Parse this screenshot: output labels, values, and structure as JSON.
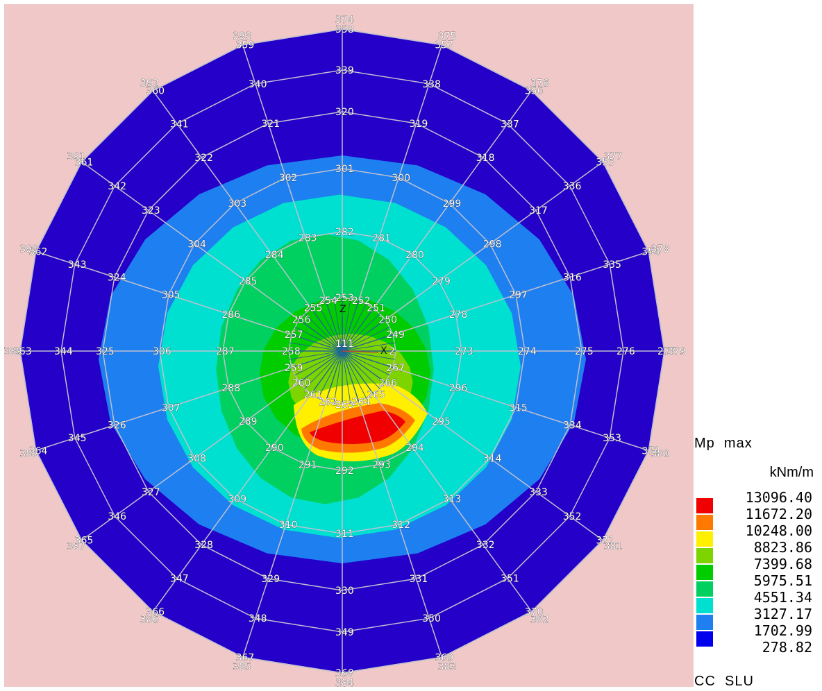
{
  "diagram": {
    "result_type": "Mp",
    "stat": "max",
    "unit": "kNm/m",
    "load_case": "CC",
    "limit_state": "SLU",
    "axis_labels": {
      "z": "Z",
      "x": "X"
    },
    "center_node": "111",
    "colors": {
      "background": "#f0c8c8",
      "mesh_line": "#c0c0d0",
      "outer_band": "#2400c8",
      "levels": [
        "#0000ee",
        "#1e7ff0",
        "#00e0d0",
        "#00d060",
        "#00cc00",
        "#7ed400",
        "#fff000",
        "#ff7800",
        "#f00000"
      ]
    },
    "legend_values": [
      "13096.40",
      "11672.20",
      "10248.00",
      "8823.86",
      "7399.68",
      "5975.51",
      "4551.34",
      "3127.17",
      "1702.99",
      "278.82"
    ],
    "legend_colors": [
      "#f00000",
      "#ff7800",
      "#fff000",
      "#7ed400",
      "#00cc00",
      "#00d060",
      "#00e0d0",
      "#1e7ff0",
      "#0000ee"
    ],
    "ring_nodes": [
      [
        "2",
        "249",
        "250",
        "251",
        "252",
        "253",
        "254",
        "255",
        "256",
        "257",
        "258",
        "259",
        "260",
        "261",
        "262",
        "263",
        "264",
        "265",
        "266",
        "267"
      ],
      [
        "273",
        "278",
        "279",
        "280",
        "281",
        "282",
        "283",
        "284",
        "285",
        "286",
        "287",
        "288",
        "289",
        "290",
        "291",
        "292",
        "293",
        "294",
        "295",
        "296"
      ],
      [
        "274",
        "297",
        "298",
        "299",
        "300",
        "301",
        "302",
        "303",
        "304",
        "305",
        "306",
        "307",
        "308",
        "309",
        "310",
        "311",
        "312",
        "313",
        "314",
        "315"
      ],
      [
        "275",
        "316",
        "317",
        "318",
        "319",
        "320",
        "321",
        "322",
        "323",
        "324",
        "325",
        "326",
        "327",
        "328",
        "329",
        "330",
        "331",
        "332",
        "333",
        "334"
      ],
      [
        "276",
        "335",
        "336",
        "337",
        "338",
        "339",
        "340",
        "341",
        "342",
        "343",
        "344",
        "345",
        "346",
        "347",
        "348",
        "349",
        "350",
        "351",
        "352",
        "353"
      ],
      [
        "277",
        "354",
        "355",
        "356",
        "357",
        "358",
        "359",
        "360",
        "361",
        "362",
        "363",
        "364",
        "365",
        "366",
        "367",
        "368",
        "369",
        "370",
        "371",
        "372"
      ],
      [
        "379",
        "378",
        "377",
        "376",
        "375",
        "374",
        "393",
        "392",
        "391",
        "390",
        "389",
        "388",
        "387",
        "386",
        "385",
        "384",
        "383",
        "382",
        "381",
        "380"
      ]
    ]
  }
}
